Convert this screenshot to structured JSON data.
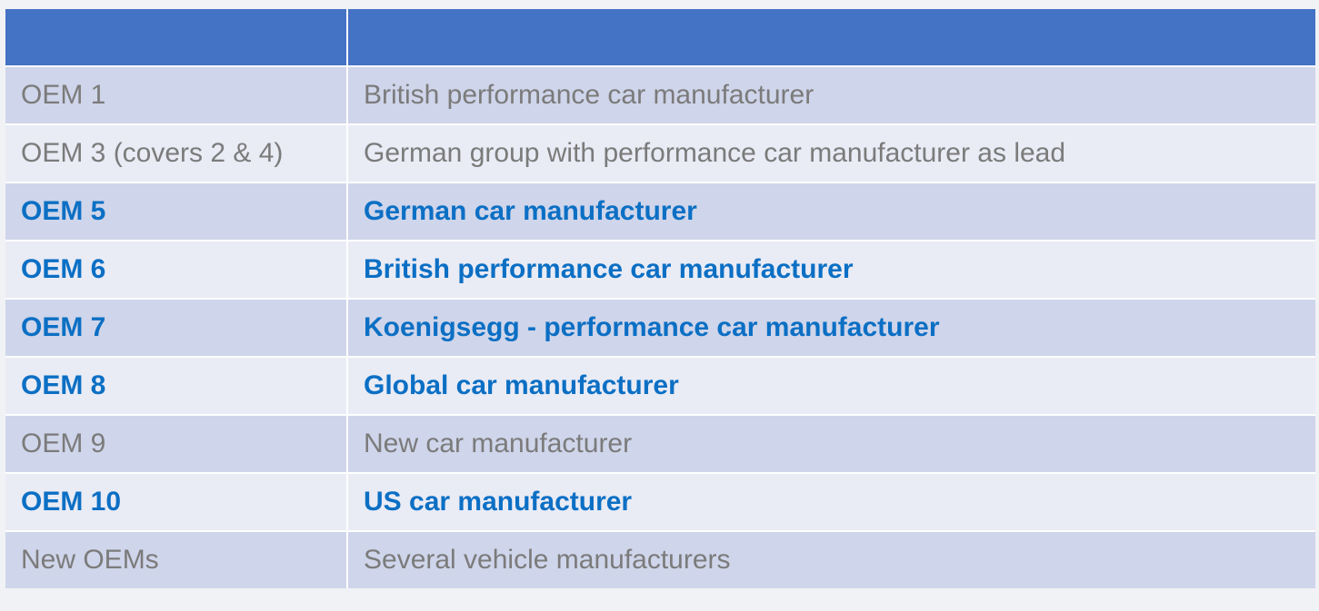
{
  "table": {
    "header": [
      "",
      ""
    ],
    "rows": [
      {
        "oem": "OEM 1",
        "description": "British performance car manufacturer",
        "highlight": false
      },
      {
        "oem": "OEM 3 (covers 2 & 4)",
        "description": "German group with performance car manufacturer as lead",
        "highlight": false
      },
      {
        "oem": "OEM 5",
        "description": "German car manufacturer",
        "highlight": true
      },
      {
        "oem": "OEM 6",
        "description": "British performance car manufacturer",
        "highlight": true
      },
      {
        "oem": "OEM 7",
        "description": "Koenigsegg - performance car manufacturer",
        "highlight": true
      },
      {
        "oem": "OEM 8",
        "description": "Global car manufacturer",
        "highlight": true
      },
      {
        "oem": "OEM 9",
        "description": "New car manufacturer",
        "highlight": false
      },
      {
        "oem": "OEM 10",
        "description": "US car manufacturer",
        "highlight": true
      },
      {
        "oem": "New OEMs",
        "description": "Several vehicle manufacturers",
        "highlight": false
      }
    ]
  },
  "colors": {
    "header": "#4472c4",
    "row_odd": "#cfd5ea",
    "row_even": "#e9ebf5",
    "text_plain": "#7b7b7b",
    "text_highlight": "#0b6fc4"
  }
}
